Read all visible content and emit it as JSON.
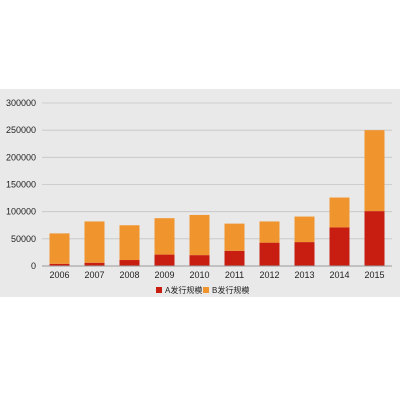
{
  "chart_data": {
    "type": "bar",
    "stacked": true,
    "title": "",
    "xlabel": "",
    "ylabel": "",
    "categories": [
      "2006",
      "2007",
      "2008",
      "2009",
      "2010",
      "2011",
      "2012",
      "2013",
      "2014",
      "2015"
    ],
    "ylim": [
      0,
      300000
    ],
    "yticks": [
      "0",
      "50000",
      "100000",
      "150000",
      "200000",
      "250000",
      "300000"
    ],
    "grid": true,
    "legend_position": "bottom",
    "series": [
      {
        "name": "A发行规模",
        "color": "#c81d11",
        "values": [
          4000,
          6000,
          11000,
          21000,
          20000,
          28000,
          43000,
          44000,
          71000,
          101000
        ]
      },
      {
        "name": "B发行规模",
        "color": "#f0952e",
        "values": [
          56000,
          76000,
          64000,
          67000,
          74000,
          50000,
          39000,
          47000,
          55000,
          149000
        ]
      }
    ]
  }
}
